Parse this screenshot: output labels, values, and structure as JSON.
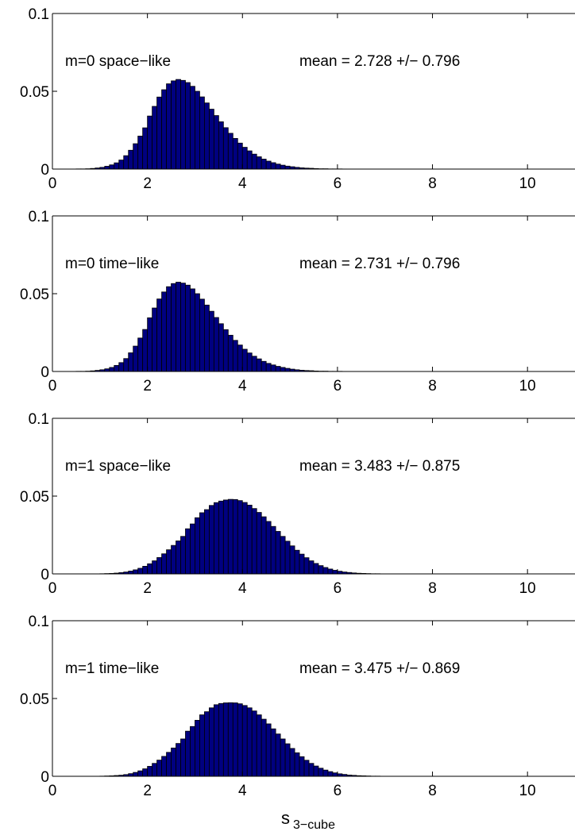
{
  "chart_data": [
    {
      "type": "bar",
      "label": "m=0 space−like",
      "stats": "mean = 2.728 +/− 0.796",
      "mean": 2.728,
      "sd": 0.796,
      "xlim": [
        0,
        11
      ],
      "ylim": [
        0,
        0.1
      ],
      "xticks": [
        "0",
        "2",
        "4",
        "6",
        "8",
        "10"
      ],
      "yticks": [
        "0",
        "0.05",
        "0.1"
      ],
      "bar_width": 0.1,
      "x": [
        0.55,
        0.65,
        0.75,
        0.85,
        0.95,
        1.05,
        1.15,
        1.25,
        1.35,
        1.45,
        1.55,
        1.65,
        1.75,
        1.85,
        1.95,
        2.05,
        2.15,
        2.25,
        2.35,
        2.45,
        2.55,
        2.65,
        2.75,
        2.85,
        2.95,
        3.05,
        3.15,
        3.25,
        3.35,
        3.45,
        3.55,
        3.65,
        3.75,
        3.85,
        3.95,
        4.05,
        4.15,
        4.25,
        4.35,
        4.45,
        4.55,
        4.65,
        4.75,
        4.85,
        4.95,
        5.05,
        5.15,
        5.25,
        5.35,
        5.45,
        5.55,
        5.65,
        5.75,
        5.85,
        5.95,
        6.05,
        6.15
      ],
      "values": [
        0.0001,
        0.0001,
        0.0002,
        0.0004,
        0.0007,
        0.0011,
        0.0018,
        0.0027,
        0.004,
        0.0058,
        0.0086,
        0.0121,
        0.0163,
        0.0212,
        0.0265,
        0.0341,
        0.0403,
        0.0463,
        0.051,
        0.0548,
        0.0567,
        0.0576,
        0.057,
        0.0556,
        0.0532,
        0.05,
        0.0464,
        0.0425,
        0.0385,
        0.0344,
        0.0304,
        0.0266,
        0.023,
        0.0197,
        0.0167,
        0.014,
        0.0117,
        0.0096,
        0.0079,
        0.0064,
        0.0051,
        0.0041,
        0.0032,
        0.0025,
        0.0019,
        0.0015,
        0.0011,
        0.0008,
        0.0006,
        0.0005,
        0.0003,
        0.0002,
        0.0002,
        0.0001,
        0.0001,
        0.0001,
        5e-05
      ]
    },
    {
      "type": "bar",
      "label": "m=0 time−like",
      "stats": "mean = 2.731 +/− 0.796",
      "mean": 2.731,
      "sd": 0.796,
      "xlim": [
        0,
        11
      ],
      "ylim": [
        0,
        0.1
      ],
      "xticks": [
        "0",
        "2",
        "4",
        "6",
        "8",
        "10"
      ],
      "yticks": [
        "0",
        "0.05",
        "0.1"
      ],
      "bar_width": 0.1,
      "x": [
        0.55,
        0.65,
        0.75,
        0.85,
        0.95,
        1.05,
        1.15,
        1.25,
        1.35,
        1.45,
        1.55,
        1.65,
        1.75,
        1.85,
        1.95,
        2.05,
        2.15,
        2.25,
        2.35,
        2.45,
        2.55,
        2.65,
        2.75,
        2.85,
        2.95,
        3.05,
        3.15,
        3.25,
        3.35,
        3.45,
        3.55,
        3.65,
        3.75,
        3.85,
        3.95,
        4.05,
        4.15,
        4.25,
        4.35,
        4.45,
        4.55,
        4.65,
        4.75,
        4.85,
        4.95,
        5.05,
        5.15,
        5.25,
        5.35,
        5.45,
        5.55,
        5.65,
        5.75,
        5.85,
        5.95,
        6.05,
        6.15
      ],
      "values": [
        0.0001,
        0.0001,
        0.0002,
        0.0004,
        0.0007,
        0.0011,
        0.0017,
        0.0026,
        0.0039,
        0.0057,
        0.0083,
        0.012,
        0.0163,
        0.0215,
        0.027,
        0.0345,
        0.0408,
        0.0466,
        0.0511,
        0.0545,
        0.0565,
        0.0574,
        0.0568,
        0.0555,
        0.0531,
        0.05,
        0.0465,
        0.0427,
        0.0387,
        0.0347,
        0.0307,
        0.0269,
        0.0233,
        0.02,
        0.017,
        0.0143,
        0.0119,
        0.0098,
        0.0081,
        0.0065,
        0.0052,
        0.0042,
        0.0033,
        0.0026,
        0.002,
        0.0015,
        0.0011,
        0.0008,
        0.0006,
        0.0005,
        0.0003,
        0.0002,
        0.0002,
        0.0001,
        0.0001,
        0.0001,
        5e-05
      ]
    },
    {
      "type": "bar",
      "label": "m=1 space−like",
      "stats": "mean = 3.483 +/− 0.875",
      "mean": 3.483,
      "sd": 0.875,
      "xlim": [
        0,
        11
      ],
      "ylim": [
        0,
        0.1
      ],
      "xticks": [
        "0",
        "2",
        "4",
        "6",
        "8",
        "10"
      ],
      "yticks": [
        "0",
        "0.05",
        "0.1"
      ],
      "bar_width": 0.1,
      "x": [
        1.05,
        1.15,
        1.25,
        1.35,
        1.45,
        1.55,
        1.65,
        1.75,
        1.85,
        1.95,
        2.05,
        2.15,
        2.25,
        2.35,
        2.45,
        2.55,
        2.65,
        2.75,
        2.85,
        2.95,
        3.05,
        3.15,
        3.25,
        3.35,
        3.45,
        3.55,
        3.65,
        3.75,
        3.85,
        3.95,
        4.05,
        4.15,
        4.25,
        4.35,
        4.45,
        4.55,
        4.65,
        4.75,
        4.85,
        4.95,
        5.05,
        5.15,
        5.25,
        5.35,
        5.45,
        5.55,
        5.65,
        5.75,
        5.85,
        5.95,
        6.05,
        6.15,
        6.25,
        6.35,
        6.45,
        6.55,
        6.65,
        6.75,
        6.85,
        6.95
      ],
      "values": [
        0.0001,
        0.0002,
        0.0003,
        0.0005,
        0.0008,
        0.0012,
        0.0018,
        0.0026,
        0.0036,
        0.0049,
        0.0065,
        0.0084,
        0.0105,
        0.0129,
        0.0155,
        0.0183,
        0.0212,
        0.0241,
        0.029,
        0.0321,
        0.0361,
        0.0393,
        0.0413,
        0.044,
        0.0458,
        0.0468,
        0.0475,
        0.0479,
        0.0478,
        0.0471,
        0.0459,
        0.0442,
        0.042,
        0.0395,
        0.0367,
        0.0337,
        0.0305,
        0.0273,
        0.0241,
        0.021,
        0.018,
        0.0152,
        0.0127,
        0.0104,
        0.0084,
        0.0067,
        0.0053,
        0.0041,
        0.0031,
        0.0023,
        0.0017,
        0.0012,
        0.0009,
        0.0006,
        0.0004,
        0.0003,
        0.0002,
        0.0001,
        0.0001,
        5e-05
      ]
    },
    {
      "type": "bar",
      "label": "m=1 time−like",
      "stats": "mean = 3.475 +/− 0.869",
      "mean": 3.475,
      "sd": 0.869,
      "xlim": [
        0,
        11
      ],
      "ylim": [
        0,
        0.1
      ],
      "xticks": [
        "0",
        "2",
        "4",
        "6",
        "8",
        "10"
      ],
      "yticks": [
        "0",
        "0.05",
        "0.1"
      ],
      "bar_width": 0.1,
      "x": [
        1.05,
        1.15,
        1.25,
        1.35,
        1.45,
        1.55,
        1.65,
        1.75,
        1.85,
        1.95,
        2.05,
        2.15,
        2.25,
        2.35,
        2.45,
        2.55,
        2.65,
        2.75,
        2.85,
        2.95,
        3.05,
        3.15,
        3.25,
        3.35,
        3.45,
        3.55,
        3.65,
        3.75,
        3.85,
        3.95,
        4.05,
        4.15,
        4.25,
        4.35,
        4.45,
        4.55,
        4.65,
        4.75,
        4.85,
        4.95,
        5.05,
        5.15,
        5.25,
        5.35,
        5.45,
        5.55,
        5.65,
        5.75,
        5.85,
        5.95,
        6.05,
        6.15,
        6.25,
        6.35,
        6.45,
        6.55,
        6.65,
        6.75,
        6.85,
        6.95
      ],
      "values": [
        0.0001,
        0.0002,
        0.0003,
        0.0005,
        0.0007,
        0.0011,
        0.0017,
        0.0025,
        0.0035,
        0.0048,
        0.0064,
        0.0083,
        0.0104,
        0.0128,
        0.0154,
        0.0182,
        0.0211,
        0.024,
        0.029,
        0.032,
        0.036,
        0.0395,
        0.0415,
        0.044,
        0.046,
        0.0468,
        0.0472,
        0.0473,
        0.0472,
        0.0466,
        0.0455,
        0.044,
        0.042,
        0.0395,
        0.0367,
        0.0337,
        0.0305,
        0.0272,
        0.024,
        0.0209,
        0.0179,
        0.0151,
        0.0126,
        0.0103,
        0.0083,
        0.0066,
        0.0052,
        0.004,
        0.003,
        0.0022,
        0.0016,
        0.0012,
        0.0008,
        0.0006,
        0.0004,
        0.0003,
        0.0002,
        0.0001,
        0.0001,
        5e-05
      ]
    }
  ],
  "xlabel": {
    "main": "s",
    "sub": "3−cube"
  },
  "colors": {
    "bar_fill": "#000080",
    "bar_edge": "#000000",
    "axes": "#000000",
    "background": "#ffffff"
  }
}
